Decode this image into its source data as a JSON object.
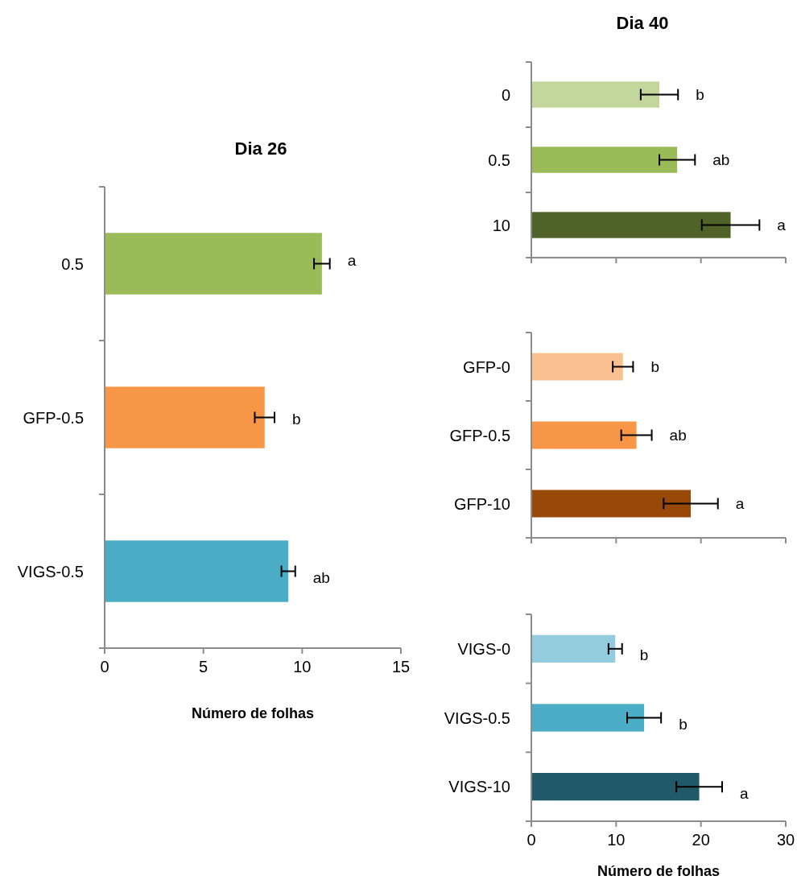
{
  "chart_data": [
    {
      "type": "bar",
      "orientation": "horizontal",
      "title": "Dia 26",
      "xlabel": "Número de folhas",
      "categories": [
        "0.5",
        "GFP-0.5",
        "VIGS-0.5"
      ],
      "values": [
        11.0,
        8.1,
        9.3
      ],
      "errors": [
        0.4,
        0.5,
        0.35
      ],
      "colors": [
        "#9bbb59",
        "#f79646",
        "#4bacc6"
      ],
      "xlim": [
        0,
        15
      ],
      "xticks": [
        0,
        5,
        10,
        15
      ],
      "annotations": [
        "a",
        "b",
        "ab"
      ]
    },
    {
      "type": "bar",
      "orientation": "horizontal",
      "title": "Dia 40",
      "categories": [
        "0",
        "0.5",
        "10"
      ],
      "values": [
        15.1,
        17.2,
        23.5
      ],
      "errors": [
        2.2,
        2.1,
        3.4
      ],
      "colors": [
        "#c3d69b",
        "#9bbb59",
        "#4f6228"
      ],
      "xlim": [
        0,
        30
      ],
      "xticks": [
        {
          "value": 0,
          "label": null
        },
        {
          "value": 10,
          "label": null
        },
        {
          "value": 20,
          "label": null
        },
        {
          "value": 30,
          "label": null
        }
      ],
      "tick_labels": "y",
      "annotations": [
        "b",
        "ab",
        "a"
      ]
    },
    {
      "type": "bar",
      "orientation": "horizontal",
      "categories": [
        "GFP-0",
        "GFP-0.5",
        "GFP-10"
      ],
      "values": [
        10.8,
        12.4,
        18.8
      ],
      "errors": [
        1.2,
        1.8,
        3.2
      ],
      "colors": [
        "#fac090",
        "#f79646",
        "#984807"
      ],
      "xlim": [
        0,
        30
      ],
      "xticks": [
        {
          "value": 0,
          "label": null
        },
        {
          "value": 10,
          "label": null
        },
        {
          "value": 20,
          "label": null
        },
        {
          "value": 30,
          "label": null
        }
      ],
      "tick_labels": "y",
      "annotations": [
        "b",
        "ab",
        "a"
      ]
    },
    {
      "type": "bar",
      "orientation": "horizontal",
      "xlabel": "Número de folhas",
      "categories": [
        "VIGS-0",
        "VIGS-0.5",
        "VIGS-10"
      ],
      "values": [
        9.9,
        13.3,
        19.8
      ],
      "errors": [
        0.8,
        2.0,
        2.7
      ],
      "colors": [
        "#93cddd",
        "#4bacc6",
        "#215968"
      ],
      "xlim": [
        0,
        30
      ],
      "xticks": [
        0,
        10,
        20,
        30
      ],
      "annotations": [
        "b",
        "b",
        "a"
      ]
    }
  ]
}
